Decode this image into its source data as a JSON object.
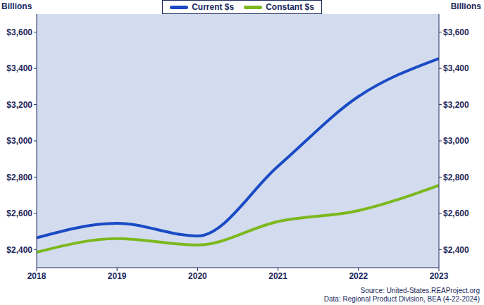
{
  "chart_data": {
    "type": "line",
    "y_label": "Billions",
    "y2_label": "Billions",
    "x": [
      2018,
      2019,
      2020,
      2021,
      2022,
      2023
    ],
    "series": [
      {
        "name": "Current $s",
        "color": "#1a4bc4",
        "values": [
          2465,
          2545,
          2475,
          2860,
          3245,
          3455
        ]
      },
      {
        "name": "Constant $s",
        "color": "#7cb81e",
        "values": [
          2385,
          2460,
          2425,
          2555,
          2615,
          2755
        ]
      }
    ],
    "xlim": [
      2018,
      2023
    ],
    "xticks": [
      2018,
      2019,
      2020,
      2021,
      2022,
      2023
    ],
    "ylim": [
      2300,
      3700
    ],
    "yticks": [
      {
        "value": 2400,
        "label": "$2,400"
      },
      {
        "value": 2600,
        "label": "$2,600"
      },
      {
        "value": 2800,
        "label": "$2,800"
      },
      {
        "value": 3000,
        "label": "$3,000"
      },
      {
        "value": 3200,
        "label": "$3,200"
      },
      {
        "value": 3400,
        "label": "$3,400"
      },
      {
        "value": 3600,
        "label": "$3,600"
      }
    ],
    "y2lim": [
      2300,
      3700
    ],
    "y2ticks": [
      {
        "value": 2400,
        "label": "$2,400"
      },
      {
        "value": 2600,
        "label": "$2,600"
      },
      {
        "value": 2800,
        "label": "$2,800"
      },
      {
        "value": 3000,
        "label": "$3,000"
      },
      {
        "value": 3200,
        "label": "$3,200"
      },
      {
        "value": 3400,
        "label": "$3,400"
      },
      {
        "value": 3600,
        "label": "$3,600"
      }
    ],
    "grid": false,
    "legend": "top",
    "source": [
      "Source: United-States.REAProject.org",
      "Data: Regional Product Division, BEA (4-22-2024)"
    ]
  }
}
